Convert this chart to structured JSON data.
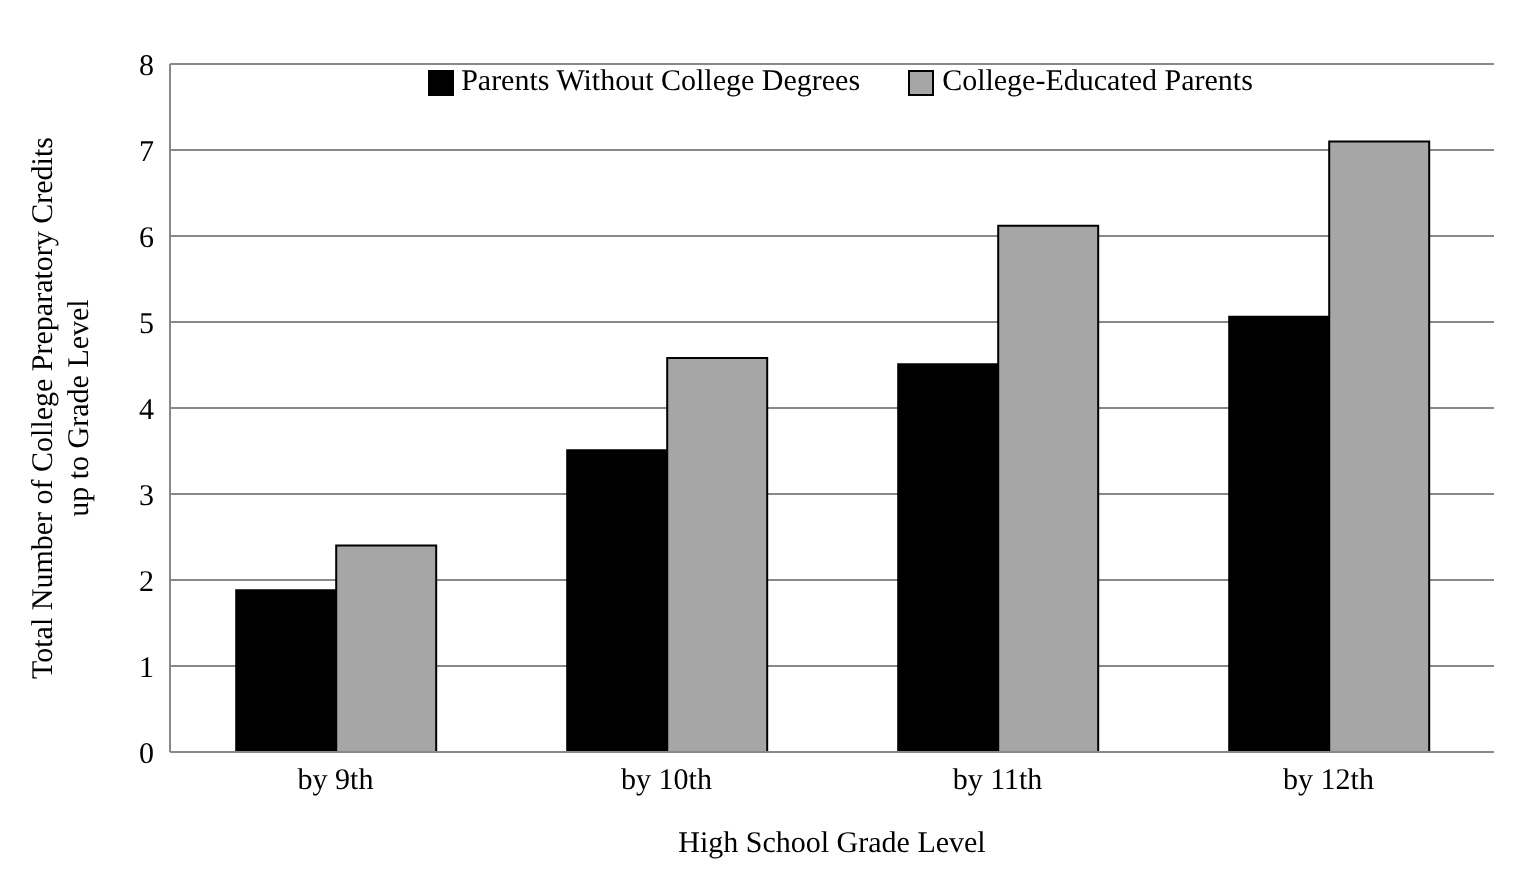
{
  "chart_data": {
    "type": "bar",
    "xlabel": "High School Grade Level",
    "ylabel": "Total Number of College Preparatory Credits up to Grade Level",
    "categories": [
      "by 9th",
      "by 10th",
      "by 11th",
      "by 12th"
    ],
    "series": [
      {
        "name": "Parents Without College Degrees",
        "color": "#000000",
        "values": [
          1.88,
          3.51,
          4.51,
          5.06
        ]
      },
      {
        "name": "College-Educated Parents",
        "color": "#a6a6a6",
        "values": [
          2.4,
          4.58,
          6.12,
          7.1
        ]
      }
    ],
    "ylim": [
      0,
      8
    ],
    "yticks": [
      0,
      1,
      2,
      3,
      4,
      5,
      6,
      7,
      8
    ],
    "grid": "y",
    "legend": "top"
  }
}
